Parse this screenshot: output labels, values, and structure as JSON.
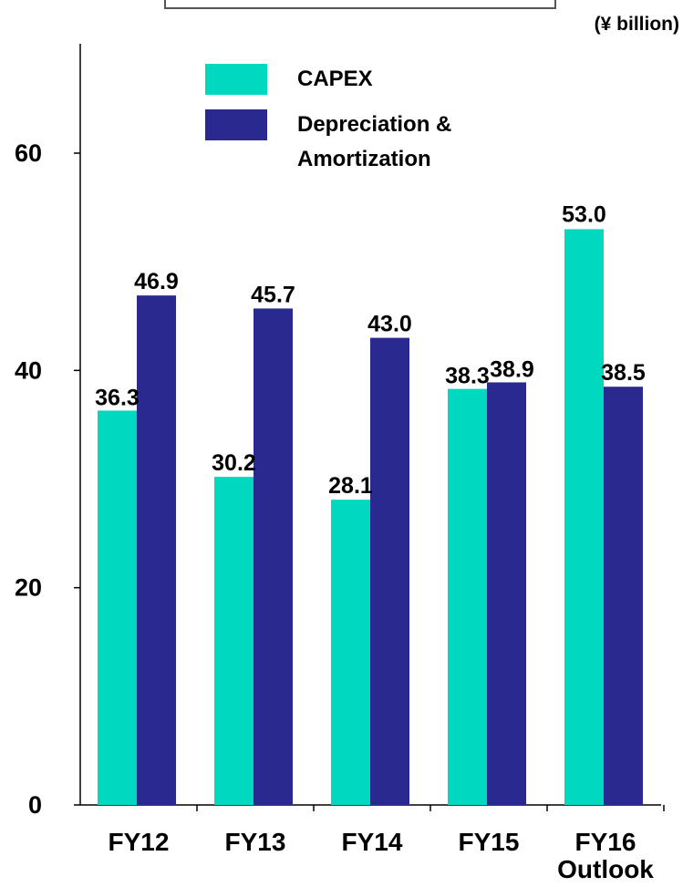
{
  "chart_data": {
    "type": "bar",
    "unit_label": "(¥ billion)",
    "categories": [
      "FY12",
      "FY13",
      "FY14",
      "FY15",
      "FY16\nOutlook"
    ],
    "series": [
      {
        "name": "CAPEX",
        "color": "#00d8c0",
        "values": [
          36.3,
          30.2,
          28.1,
          38.3,
          53.0
        ],
        "labels": [
          "36.3",
          "30.2",
          "28.1",
          "38.3",
          "53.0"
        ]
      },
      {
        "name": "Depreciation & Amortization",
        "color": "#29298f",
        "values": [
          46.9,
          45.7,
          43.0,
          38.9,
          38.5
        ],
        "labels": [
          "46.9",
          "45.7",
          "43.0",
          "38.9",
          "38.5"
        ]
      }
    ],
    "yticks": [
      "0",
      "20",
      "40",
      "60"
    ],
    "ylim": [
      0,
      68
    ],
    "grid": false,
    "legend_position": "top-left"
  }
}
